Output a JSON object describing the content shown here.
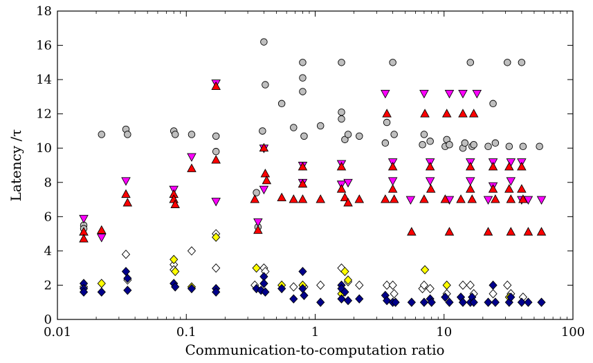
{
  "chart_data": {
    "type": "scatter",
    "title": "",
    "xlabel": "Communication-to-computation ratio",
    "ylabel": "Latency /τ",
    "xscale": "log",
    "xlim": [
      0.01,
      100
    ],
    "ylim": [
      0,
      18
    ],
    "grid": false,
    "legend": "none",
    "x_ticks": [
      0.01,
      0.1,
      1,
      10,
      100
    ],
    "x_tick_labels": [
      "0.01",
      "0.1",
      "1",
      "10",
      "100"
    ],
    "y_ticks": [
      0,
      2,
      4,
      6,
      8,
      10,
      12,
      14,
      16,
      18
    ],
    "y_tick_labels": [
      "0",
      "2",
      "4",
      "6",
      "8",
      "10",
      "12",
      "14",
      "16",
      "18"
    ],
    "series": [
      {
        "marker": "circle",
        "color": "#bfbfbf",
        "points": [
          [
            0.016,
            5.5
          ],
          [
            0.016,
            5.3
          ],
          [
            0.022,
            10.8
          ],
          [
            0.034,
            11.1
          ],
          [
            0.035,
            10.8
          ],
          [
            0.08,
            11.0
          ],
          [
            0.082,
            10.8
          ],
          [
            0.11,
            10.8
          ],
          [
            0.17,
            10.7
          ],
          [
            0.17,
            9.8
          ],
          [
            0.35,
            7.4
          ],
          [
            0.36,
            5.4
          ],
          [
            0.39,
            11.0
          ],
          [
            0.4,
            16.2
          ],
          [
            0.41,
            13.7
          ],
          [
            0.55,
            12.6
          ],
          [
            0.68,
            11.2
          ],
          [
            0.8,
            15.0
          ],
          [
            0.8,
            14.1
          ],
          [
            0.8,
            13.3
          ],
          [
            0.82,
            10.7
          ],
          [
            1.1,
            11.3
          ],
          [
            1.6,
            15.0
          ],
          [
            1.6,
            12.1
          ],
          [
            1.6,
            11.7
          ],
          [
            1.7,
            10.5
          ],
          [
            1.8,
            10.8
          ],
          [
            2.2,
            10.7
          ],
          [
            3.5,
            10.3
          ],
          [
            3.6,
            11.5
          ],
          [
            4.0,
            15.0
          ],
          [
            4.1,
            10.8
          ],
          [
            6.8,
            10.2
          ],
          [
            7.0,
            10.8
          ],
          [
            7.8,
            10.4
          ],
          [
            10.2,
            10.1
          ],
          [
            10.5,
            10.5
          ],
          [
            11.0,
            10.2
          ],
          [
            14.0,
            10.0
          ],
          [
            14.5,
            10.3
          ],
          [
            16.0,
            15.0
          ],
          [
            16.5,
            10.1
          ],
          [
            17.0,
            10.2
          ],
          [
            22.0,
            10.1
          ],
          [
            24.0,
            12.6
          ],
          [
            25.0,
            10.3
          ],
          [
            31.0,
            15.0
          ],
          [
            32.0,
            10.1
          ],
          [
            40.0,
            15.0
          ],
          [
            41.0,
            10.1
          ],
          [
            55.0,
            10.1
          ]
        ]
      },
      {
        "marker": "triangle-down",
        "color": "#ff00ff",
        "points": [
          [
            0.016,
            5.9
          ],
          [
            0.022,
            4.8
          ],
          [
            0.034,
            8.1
          ],
          [
            0.08,
            7.6
          ],
          [
            0.11,
            9.5
          ],
          [
            0.17,
            13.8
          ],
          [
            0.17,
            6.9
          ],
          [
            0.36,
            5.7
          ],
          [
            0.4,
            10.0
          ],
          [
            0.4,
            7.6
          ],
          [
            0.8,
            9.0
          ],
          [
            0.8,
            8.0
          ],
          [
            1.6,
            9.1
          ],
          [
            1.6,
            7.9
          ],
          [
            1.8,
            8.0
          ],
          [
            3.5,
            13.2
          ],
          [
            4.0,
            9.2
          ],
          [
            4.0,
            8.1
          ],
          [
            5.5,
            7.0
          ],
          [
            7.0,
            13.2
          ],
          [
            7.8,
            9.2
          ],
          [
            7.8,
            8.1
          ],
          [
            11.0,
            13.2
          ],
          [
            11.0,
            7.0
          ],
          [
            14.0,
            13.2
          ],
          [
            16.0,
            9.2
          ],
          [
            16.0,
            8.1
          ],
          [
            18.0,
            13.2
          ],
          [
            22.0,
            7.0
          ],
          [
            24.0,
            9.2
          ],
          [
            24.0,
            7.8
          ],
          [
            33.0,
            9.2
          ],
          [
            33.0,
            8.1
          ],
          [
            40.0,
            9.2
          ],
          [
            40.0,
            7.0
          ],
          [
            45.0,
            7.0
          ],
          [
            57.0,
            7.0
          ]
        ]
      },
      {
        "marker": "triangle-up",
        "color": "#ff0000",
        "points": [
          [
            0.016,
            5.1
          ],
          [
            0.016,
            4.7
          ],
          [
            0.022,
            5.2
          ],
          [
            0.034,
            7.3
          ],
          [
            0.035,
            6.8
          ],
          [
            0.08,
            7.3
          ],
          [
            0.08,
            7.0
          ],
          [
            0.082,
            6.7
          ],
          [
            0.11,
            8.8
          ],
          [
            0.17,
            13.6
          ],
          [
            0.17,
            9.3
          ],
          [
            0.34,
            7.0
          ],
          [
            0.36,
            5.2
          ],
          [
            0.4,
            10.0
          ],
          [
            0.41,
            8.5
          ],
          [
            0.42,
            8.1
          ],
          [
            0.55,
            7.1
          ],
          [
            0.68,
            7.0
          ],
          [
            0.8,
            8.9
          ],
          [
            0.8,
            7.9
          ],
          [
            0.8,
            7.0
          ],
          [
            1.1,
            7.0
          ],
          [
            1.6,
            8.9
          ],
          [
            1.6,
            7.6
          ],
          [
            1.7,
            7.1
          ],
          [
            1.8,
            6.8
          ],
          [
            2.2,
            7.0
          ],
          [
            3.5,
            7.0
          ],
          [
            3.6,
            12.0
          ],
          [
            4.0,
            8.9
          ],
          [
            4.0,
            7.6
          ],
          [
            4.1,
            7.0
          ],
          [
            5.6,
            5.1
          ],
          [
            7.0,
            7.0
          ],
          [
            7.1,
            12.0
          ],
          [
            7.8,
            8.9
          ],
          [
            7.9,
            7.6
          ],
          [
            10.2,
            7.0
          ],
          [
            10.5,
            12.0
          ],
          [
            11.0,
            5.1
          ],
          [
            13.5,
            7.0
          ],
          [
            14.0,
            12.0
          ],
          [
            16.0,
            8.9
          ],
          [
            16.0,
            7.6
          ],
          [
            16.5,
            7.0
          ],
          [
            17.0,
            12.0
          ],
          [
            22.0,
            5.1
          ],
          [
            24.0,
            8.9
          ],
          [
            24.0,
            7.6
          ],
          [
            25.0,
            7.0
          ],
          [
            32.0,
            8.9
          ],
          [
            32.0,
            7.6
          ],
          [
            33.0,
            7.0
          ],
          [
            33.0,
            5.1
          ],
          [
            40.0,
            8.9
          ],
          [
            40.0,
            7.6
          ],
          [
            41.0,
            7.0
          ],
          [
            45.0,
            5.1
          ],
          [
            57.0,
            5.1
          ]
        ]
      },
      {
        "marker": "diamond",
        "color": "#ffffff",
        "points": [
          [
            0.016,
            1.9
          ],
          [
            0.034,
            3.8
          ],
          [
            0.035,
            2.3
          ],
          [
            0.08,
            3.2
          ],
          [
            0.08,
            2.9
          ],
          [
            0.11,
            4.0
          ],
          [
            0.17,
            5.0
          ],
          [
            0.17,
            3.0
          ],
          [
            0.34,
            2.0
          ],
          [
            0.4,
            3.0
          ],
          [
            0.41,
            2.8
          ],
          [
            0.68,
            1.9
          ],
          [
            0.82,
            1.9
          ],
          [
            1.1,
            2.0
          ],
          [
            1.6,
            3.0
          ],
          [
            1.8,
            2.2
          ],
          [
            2.2,
            2.0
          ],
          [
            3.6,
            2.0
          ],
          [
            4.0,
            2.0
          ],
          [
            4.1,
            1.5
          ],
          [
            6.8,
            1.8
          ],
          [
            7.0,
            2.0
          ],
          [
            7.8,
            1.8
          ],
          [
            10.5,
            1.5
          ],
          [
            14.0,
            2.0
          ],
          [
            16.0,
            2.0
          ],
          [
            17.0,
            1.5
          ],
          [
            24.0,
            1.5
          ],
          [
            31.0,
            2.0
          ],
          [
            33.0,
            1.5
          ],
          [
            41.0,
            1.3
          ]
        ]
      },
      {
        "marker": "diamond",
        "color": "#ffff00",
        "points": [
          [
            0.022,
            2.1
          ],
          [
            0.08,
            3.5
          ],
          [
            0.082,
            2.8
          ],
          [
            0.11,
            1.9
          ],
          [
            0.17,
            4.8
          ],
          [
            0.35,
            3.0
          ],
          [
            0.4,
            2.1
          ],
          [
            0.55,
            2.0
          ],
          [
            0.8,
            2.0
          ],
          [
            1.6,
            1.5
          ],
          [
            1.7,
            2.8
          ],
          [
            1.8,
            2.3
          ],
          [
            7.1,
            2.9
          ],
          [
            10.5,
            2.0
          ],
          [
            32.0,
            1.3
          ]
        ]
      },
      {
        "marker": "diamond",
        "color": "#00008b",
        "points": [
          [
            0.016,
            2.1
          ],
          [
            0.016,
            1.8
          ],
          [
            0.016,
            1.6
          ],
          [
            0.022,
            1.6
          ],
          [
            0.034,
            2.8
          ],
          [
            0.035,
            2.4
          ],
          [
            0.035,
            1.7
          ],
          [
            0.08,
            2.1
          ],
          [
            0.082,
            1.9
          ],
          [
            0.11,
            1.8
          ],
          [
            0.17,
            1.8
          ],
          [
            0.17,
            1.6
          ],
          [
            0.35,
            1.8
          ],
          [
            0.38,
            1.7
          ],
          [
            0.4,
            2.5
          ],
          [
            0.4,
            2.1
          ],
          [
            0.41,
            1.6
          ],
          [
            0.55,
            1.8
          ],
          [
            0.68,
            1.2
          ],
          [
            0.8,
            2.8
          ],
          [
            0.8,
            1.8
          ],
          [
            0.82,
            1.4
          ],
          [
            1.1,
            1.0
          ],
          [
            1.6,
            2.0
          ],
          [
            1.6,
            1.8
          ],
          [
            1.6,
            1.2
          ],
          [
            1.7,
            1.6
          ],
          [
            1.8,
            1.1
          ],
          [
            2.2,
            1.2
          ],
          [
            3.5,
            1.4
          ],
          [
            3.6,
            1.1
          ],
          [
            4.0,
            1.0
          ],
          [
            4.2,
            1.0
          ],
          [
            5.6,
            1.0
          ],
          [
            7.0,
            1.0
          ],
          [
            7.8,
            1.2
          ],
          [
            8.0,
            1.0
          ],
          [
            10.2,
            1.3
          ],
          [
            11.0,
            1.0
          ],
          [
            13.5,
            1.3
          ],
          [
            14.0,
            1.0
          ],
          [
            16.0,
            1.0
          ],
          [
            16.5,
            1.3
          ],
          [
            17.0,
            1.0
          ],
          [
            22.0,
            1.0
          ],
          [
            24.0,
            2.0
          ],
          [
            25.0,
            1.0
          ],
          [
            32.0,
            1.0
          ],
          [
            33.0,
            1.3
          ],
          [
            40.0,
            1.0
          ],
          [
            45.0,
            1.0
          ],
          [
            57.0,
            1.0
          ]
        ]
      }
    ]
  }
}
